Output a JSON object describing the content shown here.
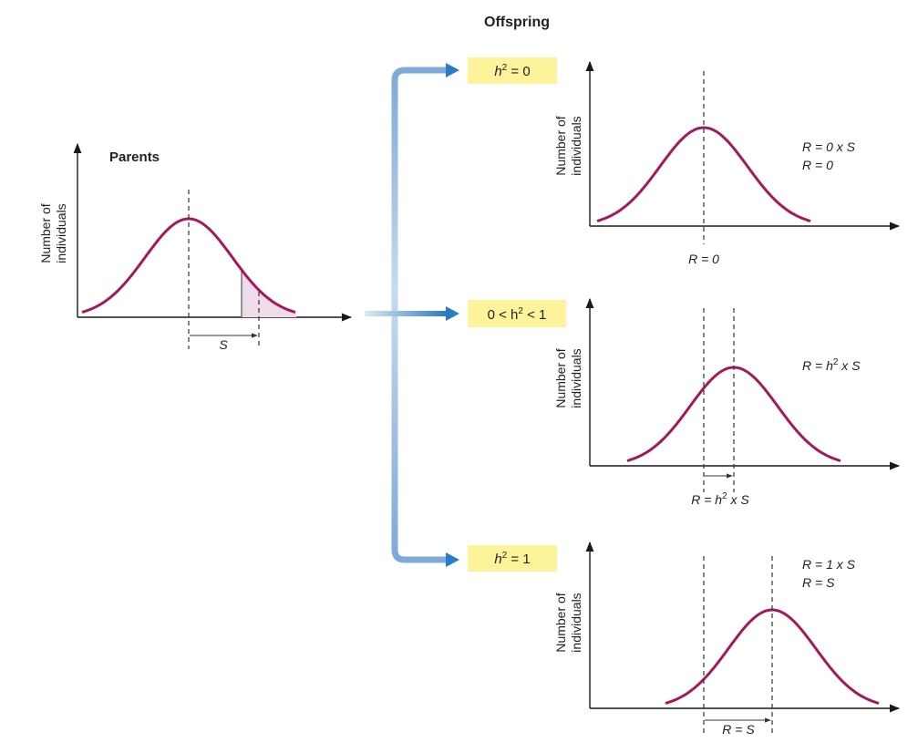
{
  "header": {
    "offspring_title": "Offspring"
  },
  "parents": {
    "title": "Parents",
    "ylabel_line1": "Number of",
    "ylabel_line2": "individuals",
    "selection_label": "S"
  },
  "cases": [
    {
      "h2_box": {
        "left": "h",
        "sup": "2",
        "right": " = 0"
      },
      "ylabel_line1": "Number of",
      "ylabel_line2": "individuals",
      "eq_line1": "R = 0 x S",
      "eq_line2": "R = 0",
      "bottom_label": "R = 0"
    },
    {
      "h2_box": {
        "left": "0 < h",
        "sup": "2",
        "right": " < 1"
      },
      "ylabel_line1": "Number of",
      "ylabel_line2": "individuals",
      "eq_line1": {
        "pre": "R = h",
        "sup": "2",
        "post": " x S"
      },
      "bottom_label": {
        "pre": "R = h",
        "sup": "2",
        "post": " x S"
      }
    },
    {
      "h2_box": {
        "left": "h",
        "sup": "2",
        "right": " = 1"
      },
      "ylabel_line1": "Number of",
      "ylabel_line2": "individuals",
      "eq_line1": "R = 1 x S",
      "eq_line2": "R = S",
      "bottom_label": "R = S"
    }
  ],
  "colors": {
    "curve": "#a3195b",
    "box": "#fcf39a",
    "arrow_light": "#c6daf0",
    "arrow_dark": "#2a7bc8",
    "shade": "#eedcea"
  }
}
